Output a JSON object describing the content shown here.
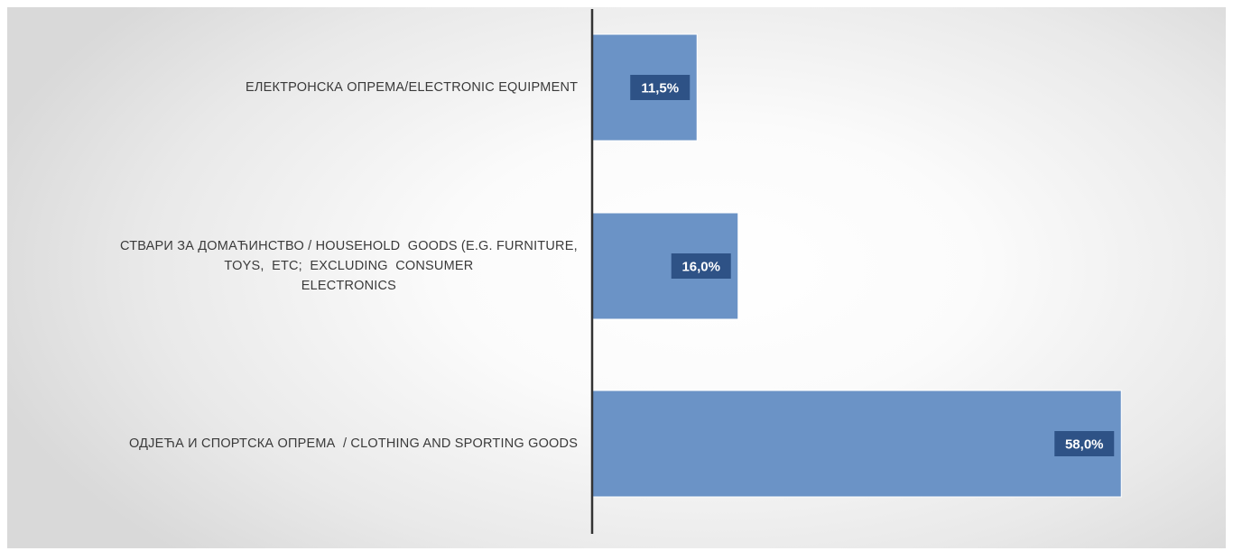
{
  "chart_data": {
    "type": "bar",
    "orientation": "horizontal",
    "categories": [
      "ЕЛЕКТРОНСКА ОПРЕМА/ELECTRONIC EQUIPMENT",
      "СТВАРИ ЗА ДОМАЋИНСТВО / HOUSEHOLD GOODS (E.G. FURNITURE, TOYS, ETC; EXCLUDING CONSUMER ELECTRONICS",
      "ОДЈЕЋА И СПОРТСКА ОПРЕМА / CLOTHING AND SPORTING GOODS"
    ],
    "category_lines": [
      [
        "ЕЛЕКТРОНСКА ОПРЕМА/ELECTRONIC EQUIPMENT"
      ],
      [
        "СТВАРИ ЗА ДОМАЋИНСТВО / HOUSEHOLD  GOODS (E.G. FURNITURE,",
        "TOYS,  ETC;  EXCLUDING  CONSUMER",
        "ELECTRONICS"
      ],
      [
        "ОДЈЕЋА И СПОРТСКА ОПРЕМА  / CLOTHING AND SPORTING GOODS"
      ]
    ],
    "values": [
      11.5,
      16.0,
      58.0
    ],
    "data_labels": [
      "11,5%",
      "16,0%",
      "58,0%"
    ],
    "xlim": [
      0,
      65
    ],
    "grid": false,
    "legend": "none",
    "colors": {
      "bar": "#6b93c6",
      "bar_edge": "#ffffff",
      "label_box": "#2e5286",
      "label_text": "#ffffff",
      "axis": "#333333",
      "category_text": "#3a3a3a"
    }
  }
}
